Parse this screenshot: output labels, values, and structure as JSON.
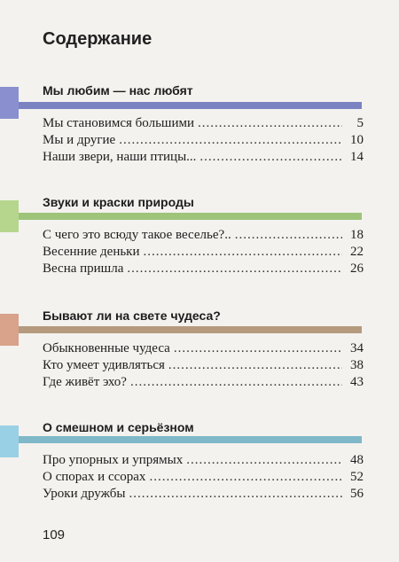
{
  "page_title": "Содержание",
  "sections": [
    {
      "heading": "Мы любим — нас любят",
      "color": "#7b83c3",
      "items": [
        {
          "title": "Мы становимся большими",
          "page": "5"
        },
        {
          "title": "Мы и другие",
          "page": "10"
        },
        {
          "title": "Наши звери, наши птицы...",
          "page": "14"
        }
      ]
    },
    {
      "heading": "Звуки и краски природы",
      "color": "#9ec47a",
      "items": [
        {
          "title": "С чего это всюду такое веселье?..",
          "page": "18"
        },
        {
          "title": "Весенние деньки",
          "page": "22"
        },
        {
          "title": "Весна пришла",
          "page": "26"
        }
      ]
    },
    {
      "heading": "Бывают ли на свете чудеса?",
      "color": "#b59a7e",
      "items": [
        {
          "title": "Обыкновенные чудеса",
          "page": "34"
        },
        {
          "title": "Кто умеет удивляться",
          "page": "38"
        },
        {
          "title": "Где живёт эхо?",
          "page": "43"
        }
      ]
    },
    {
      "heading": "О смешном и серьёзном",
      "color": "#7fb8c8",
      "items": [
        {
          "title": "Про упорных и упрямых",
          "page": "48"
        },
        {
          "title": "О спорах и ссорах",
          "page": "52"
        },
        {
          "title": "Уроки дружбы",
          "page": "56"
        }
      ]
    }
  ],
  "page_number": "109"
}
